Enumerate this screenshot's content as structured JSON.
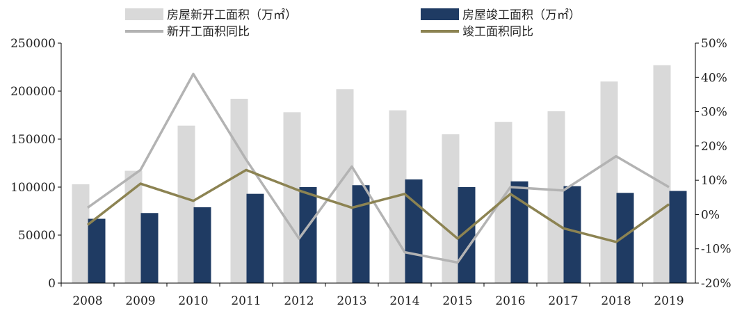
{
  "chart_data": {
    "type": "bar",
    "categories": [
      "2008",
      "2009",
      "2010",
      "2011",
      "2012",
      "2013",
      "2014",
      "2015",
      "2016",
      "2017",
      "2018",
      "2019"
    ],
    "series": [
      {
        "name": "房屋新开工面积（万㎡）",
        "kind": "bar",
        "axis": "left",
        "color": "#d9d9d9",
        "values": [
          103000,
          117000,
          164000,
          192000,
          178000,
          202000,
          180000,
          155000,
          168000,
          179000,
          210000,
          227000
        ]
      },
      {
        "name": "房屋竣工面积（万㎡）",
        "kind": "bar",
        "axis": "left",
        "color": "#1f3b63",
        "values": [
          67000,
          73000,
          79000,
          93000,
          100000,
          102000,
          108000,
          100000,
          106000,
          101000,
          94000,
          96000
        ]
      },
      {
        "name": "新开工面积同比",
        "kind": "line",
        "axis": "right",
        "color": "#b3b3b3",
        "values": [
          2,
          13,
          41,
          16,
          -7,
          14,
          -11,
          -14,
          8,
          7,
          17,
          8
        ]
      },
      {
        "name": "竣工面积同比",
        "kind": "line",
        "axis": "right",
        "color": "#8c8352",
        "values": [
          -3,
          9,
          4,
          13,
          7,
          2,
          6,
          -7,
          6,
          -4,
          -8,
          3
        ]
      }
    ],
    "ylim_left": [
      0,
      250000
    ],
    "ylim_right": [
      -20,
      50
    ],
    "left_ticks": [
      "0",
      "50000",
      "100000",
      "150000",
      "200000",
      "250000"
    ],
    "right_ticks": [
      "-20%",
      "-10%",
      "0%",
      "10%",
      "20%",
      "30%",
      "40%",
      "50%"
    ],
    "grid": false,
    "legend_position": "top"
  }
}
